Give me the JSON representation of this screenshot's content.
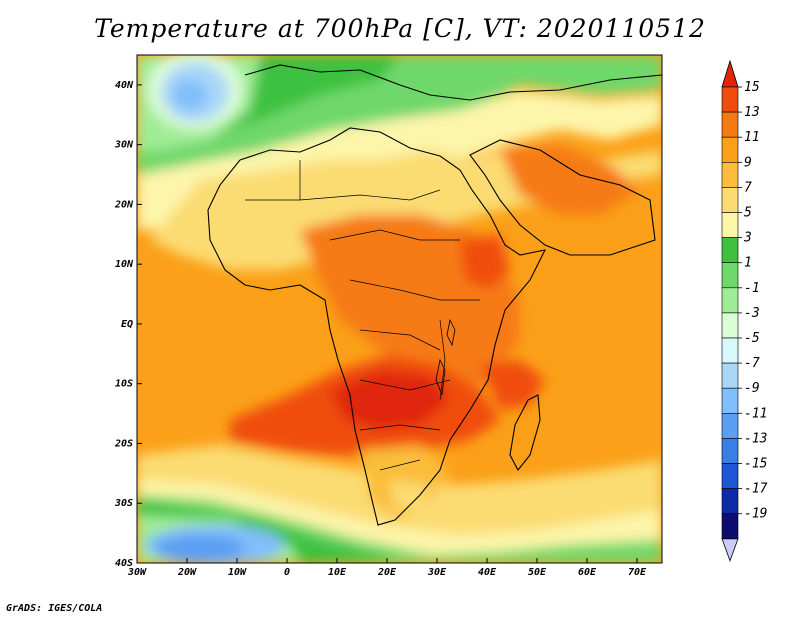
{
  "title": "Temperature at 700hPa [C], VT: 2020110512",
  "footer": "GrADS: IGES/COLA",
  "map": {
    "lon_range": [
      -30,
      75
    ],
    "lat_range": [
      -40,
      45
    ],
    "lon_ticks": [
      "30W",
      "20W",
      "10W",
      "0",
      "10E",
      "20E",
      "30E",
      "40E",
      "50E",
      "60E",
      "70E"
    ],
    "lat_ticks": [
      "40N",
      "30N",
      "20N",
      "10N",
      "EQ",
      "10S",
      "20S",
      "30S",
      "40S"
    ]
  },
  "colorbar": {
    "labels": [
      "15",
      "13",
      "11",
      "9",
      "7",
      "5",
      "3",
      "1",
      "-1",
      "-3",
      "-5",
      "-7",
      "-9",
      "-11",
      "-13",
      "-15",
      "-17",
      "-19"
    ],
    "colors": [
      "#e0250a",
      "#f04d0d",
      "#f67a12",
      "#fba018",
      "#fbbd3a",
      "#fbdc72",
      "#fcf5aa",
      "#3ec13f",
      "#6fd86a",
      "#a0ec96",
      "#dcfcd8",
      "#d8f8fc",
      "#aad7f8",
      "#82befa",
      "#5c9ef2",
      "#3a7ce8",
      "#1d56d6",
      "#0e2aa8",
      "#0c0d6e",
      "#ccccf8"
    ]
  }
}
